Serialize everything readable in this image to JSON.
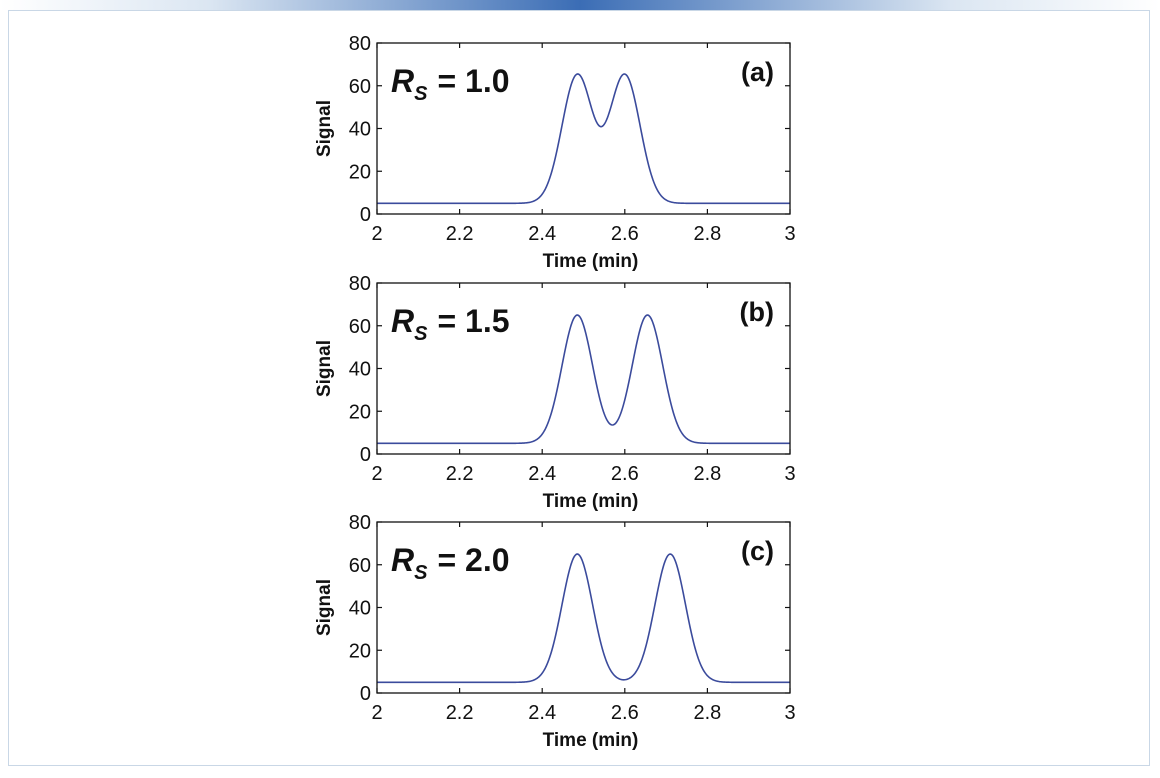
{
  "colors": {
    "line": "#3b4b9c",
    "frame_border": "#c9d7e6",
    "top_accent": "#3b6db5"
  },
  "chart_data": [
    {
      "type": "line",
      "panel_label": "(a)",
      "annotation": {
        "symbol": "R",
        "subscript": "S",
        "value": "= 1.0"
      },
      "xlabel": "Time (min)",
      "ylabel": "Signal",
      "xlim": [
        2,
        3
      ],
      "ylim": [
        0,
        80
      ],
      "xticks": [
        "2",
        "2.2",
        "2.4",
        "2.6",
        "2.8",
        "3"
      ],
      "yticks": [
        "0",
        "20",
        "40",
        "60",
        "80"
      ],
      "baseline": 5,
      "peaks": [
        {
          "center": 2.485,
          "height": 60,
          "width": 0.037
        },
        {
          "center": 2.6,
          "height": 60,
          "width": 0.037
        }
      ]
    },
    {
      "type": "line",
      "panel_label": "(b)",
      "annotation": {
        "symbol": "R",
        "subscript": "S",
        "value": "= 1.5"
      },
      "xlabel": "Time (min)",
      "ylabel": "Signal",
      "xlim": [
        2,
        3
      ],
      "ylim": [
        0,
        80
      ],
      "xticks": [
        "2",
        "2.2",
        "2.4",
        "2.6",
        "2.8",
        "3"
      ],
      "yticks": [
        "0",
        "20",
        "40",
        "60",
        "80"
      ],
      "baseline": 5,
      "peaks": [
        {
          "center": 2.485,
          "height": 60,
          "width": 0.037
        },
        {
          "center": 2.655,
          "height": 60,
          "width": 0.037
        }
      ]
    },
    {
      "type": "line",
      "panel_label": "(c)",
      "annotation": {
        "symbol": "R",
        "subscript": "S",
        "value": "= 2.0"
      },
      "xlabel": "Time (min)",
      "ylabel": "Signal",
      "xlim": [
        2,
        3
      ],
      "ylim": [
        0,
        80
      ],
      "xticks": [
        "2",
        "2.2",
        "2.4",
        "2.6",
        "2.8",
        "3"
      ],
      "yticks": [
        "0",
        "20",
        "40",
        "60",
        "80"
      ],
      "baseline": 5,
      "peaks": [
        {
          "center": 2.485,
          "height": 60,
          "width": 0.037
        },
        {
          "center": 2.71,
          "height": 60,
          "width": 0.037
        }
      ]
    }
  ]
}
